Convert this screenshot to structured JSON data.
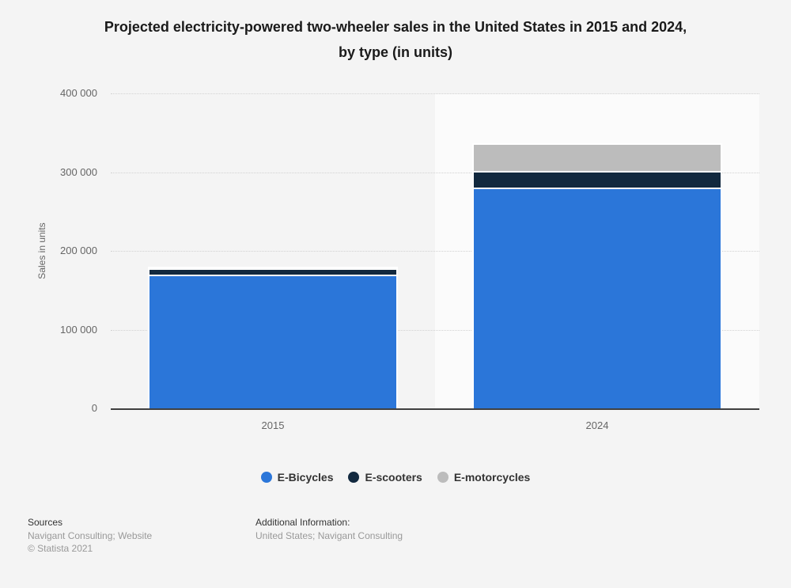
{
  "title": {
    "line1": "Projected electricity-powered two-wheeler sales in the United States in 2015 and 2024,",
    "line2": "by type (in units)"
  },
  "chart_data": {
    "type": "bar",
    "subtype": "stacked-vertical",
    "title": "Projected electricity-powered two-wheeler sales in the United States in 2015 and 2024, by type (in units)",
    "categories": [
      "2015",
      "2024"
    ],
    "series": [
      {
        "name": "E-Bicycles",
        "color": "#2b76d9",
        "values": [
          170000,
          280000
        ]
      },
      {
        "name": "E-scooters",
        "color": "#12293f",
        "values": [
          7500,
          21000
        ]
      },
      {
        "name": "E-motorcycles",
        "color": "#bcbcbc",
        "values": [
          2000,
          36000
        ]
      }
    ],
    "stack_order_bottom_to_top": [
      "E-Bicycles",
      "E-scooters",
      "E-motorcycles"
    ],
    "xlabel": "",
    "ylabel": "Sales in units",
    "ylim": [
      0,
      400000
    ],
    "yticks": [
      0,
      100000,
      200000,
      300000,
      400000
    ],
    "ytick_labels": [
      "0",
      "100 000",
      "200 000",
      "300 000",
      "400 000"
    ],
    "grid": "horizontal-dotted",
    "legend_position": "bottom",
    "highlighted_category": "2024",
    "bar_border_color": "#ffffff"
  },
  "footer": {
    "sources_label": "Sources",
    "sources_text": "Navigant Consulting; Website",
    "copyright": "© Statista 2021",
    "additional_label": "Additional Information:",
    "additional_text": "United States; Navigant Consulting"
  },
  "theme": {
    "page_bg": "#f4f4f4",
    "band_bg": "#fbfbfb",
    "grid_color": "#d2d2d2",
    "axis_color": "#404040",
    "tick_text": "#666666",
    "title_text": "#1a1a1a",
    "legend_text": "#333333",
    "footer_label_text": "#333333",
    "footer_muted_text": "#999999"
  }
}
